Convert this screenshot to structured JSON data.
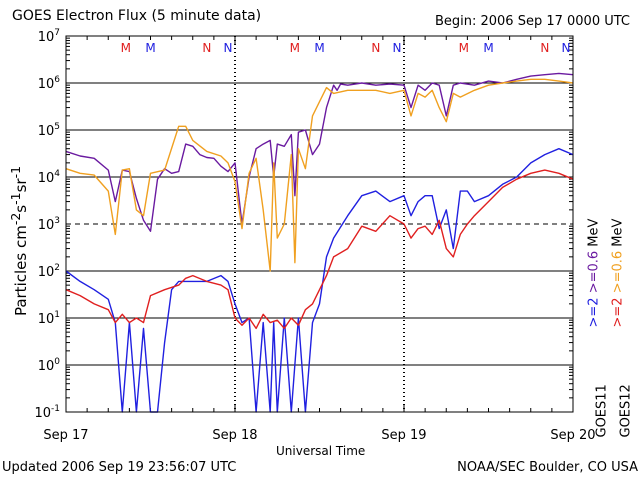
{
  "header": {
    "title": "GOES Electron Flux (5 minute data)",
    "begin": "Begin: 2006 Sep 17 0000 UTC"
  },
  "footer": {
    "updated": "Updated 2006 Sep 19 23:56:07 UTC",
    "credit": "NOAA/SEC Boulder, CO USA"
  },
  "colors": {
    "goes11_high": "#2020e0",
    "goes12_high": "#e02020",
    "goes11_low": "#6a1aa0",
    "goes12_low": "#f0a020"
  },
  "chart_data": {
    "type": "line",
    "title": "GOES Electron Flux (5 minute data)",
    "xlabel": "Universal Time",
    "ylabel": "Particles cm-2s-1sr-1",
    "y_scale": "log",
    "ylim": [
      0.1,
      10000000
    ],
    "xlim": [
      0,
      72
    ],
    "x_unit": "hours since 2006 Sep 17 0000 UTC",
    "x_ticks": [
      {
        "x": 0,
        "label": "Sep 17"
      },
      {
        "x": 24,
        "label": "Sep 18"
      },
      {
        "x": 48,
        "label": "Sep 19"
      },
      {
        "x": 72,
        "label": "Sep 20"
      }
    ],
    "y_ticks": [
      {
        "exp": "-1",
        "v": 0.1
      },
      {
        "exp": "0",
        "v": 1
      },
      {
        "exp": "1",
        "v": 10
      },
      {
        "exp": "2",
        "v": 100
      },
      {
        "exp": "3",
        "v": 1000
      },
      {
        "exp": "4",
        "v": 10000
      },
      {
        "exp": "5",
        "v": 100000
      },
      {
        "exp": "6",
        "v": 1000000
      },
      {
        "exp": "7",
        "v": 10000000
      }
    ],
    "threshold_dashed": 1000,
    "markers": [
      {
        "x": 8.5,
        "label": "M",
        "sat": "GOES12"
      },
      {
        "x": 12.0,
        "label": "M",
        "sat": "GOES11"
      },
      {
        "x": 20.0,
        "label": "N",
        "sat": "GOES12"
      },
      {
        "x": 23.0,
        "label": "N",
        "sat": "GOES11"
      },
      {
        "x": 32.5,
        "label": "M",
        "sat": "GOES12"
      },
      {
        "x": 36.0,
        "label": "M",
        "sat": "GOES11"
      },
      {
        "x": 44.0,
        "label": "N",
        "sat": "GOES12"
      },
      {
        "x": 47.0,
        "label": "N",
        "sat": "GOES11"
      },
      {
        "x": 56.5,
        "label": "M",
        "sat": "GOES12"
      },
      {
        "x": 60.0,
        "label": "M",
        "sat": "GOES11"
      },
      {
        "x": 68.0,
        "label": "N",
        "sat": "GOES12"
      },
      {
        "x": 71.0,
        "label": "N",
        "sat": "GOES11"
      }
    ],
    "legend": {
      "placement": "right",
      "satellites": [
        "GOES11",
        "GOES12"
      ],
      "goes11_high": ">=2",
      "goes11_low": ">=0.6",
      "goes12_high": ">=2",
      "goes12_low": ">=0.6",
      "unit": "MeV"
    },
    "series": [
      {
        "name": "GOES11 >=0.6 MeV",
        "color": "#6a1aa0",
        "x": [
          0,
          2,
          4,
          6,
          7,
          8,
          9,
          10,
          11,
          12,
          13,
          14,
          15,
          16,
          17,
          18,
          19,
          20,
          21,
          22,
          23,
          24,
          25,
          26,
          27,
          28,
          29,
          29.5,
          30,
          31,
          32,
          32.5,
          33,
          34,
          35,
          36,
          37,
          38,
          38.5,
          39,
          40,
          42,
          44,
          46,
          48,
          49,
          50,
          51,
          52,
          53,
          54,
          55,
          56,
          58,
          60,
          62,
          64,
          66,
          68,
          70,
          72
        ],
        "y": [
          35000,
          28000,
          25000,
          14000,
          3000,
          14000,
          13000,
          3500,
          1200,
          700,
          9000,
          15000,
          12000,
          13000,
          50000,
          45000,
          30000,
          26000,
          25000,
          17000,
          13000,
          20000,
          1000,
          10000,
          40000,
          50000,
          60000,
          10000,
          50000,
          45000,
          80000,
          4000,
          90000,
          100000,
          30000,
          50000,
          300000,
          900000,
          700000,
          950000,
          900000,
          1000000,
          900000,
          950000,
          900000,
          300000,
          900000,
          700000,
          1000000,
          900000,
          200000,
          900000,
          1000000,
          900000,
          1100000,
          1000000,
          1200000,
          1400000,
          1500000,
          1600000,
          1500000
        ]
      },
      {
        "name": "GOES12 >=0.6 MeV",
        "color": "#f0a020",
        "x": [
          0,
          2,
          4,
          6,
          7,
          8,
          9,
          10,
          11,
          12,
          14,
          16,
          17,
          18,
          20,
          22,
          23,
          24,
          25,
          26,
          27,
          28,
          29,
          29.5,
          30,
          31,
          32,
          32.5,
          33,
          34,
          35,
          36,
          37,
          38,
          40,
          42,
          44,
          46,
          48,
          49,
          50,
          51,
          52,
          53,
          54,
          55,
          56,
          58,
          60,
          62,
          64,
          66,
          68,
          70,
          72
        ],
        "y": [
          15000,
          12000,
          11000,
          5000,
          600,
          14000,
          15000,
          2000,
          1500,
          12000,
          14000,
          120000,
          120000,
          60000,
          35000,
          28000,
          20000,
          8000,
          800,
          12000,
          25000,
          2000,
          100,
          20000,
          500,
          1000,
          30000,
          150,
          40000,
          15000,
          200000,
          400000,
          800000,
          600000,
          700000,
          700000,
          700000,
          600000,
          700000,
          200000,
          600000,
          500000,
          700000,
          300000,
          150000,
          600000,
          500000,
          700000,
          900000,
          1000000,
          1100000,
          1200000,
          1200000,
          1100000,
          1000000
        ]
      },
      {
        "name": "GOES11 >=2 MeV",
        "color": "#2020e0",
        "x": [
          0,
          2,
          4,
          6,
          7,
          8,
          9,
          10,
          11,
          12,
          13,
          14,
          15,
          16,
          18,
          20,
          22,
          23,
          24,
          25,
          26,
          27,
          28,
          29,
          29.5,
          30,
          31,
          32,
          33,
          34,
          35,
          36,
          37,
          38,
          40,
          42,
          44,
          46,
          48,
          49,
          50,
          51,
          52,
          53,
          54,
          55,
          56,
          57,
          58,
          60,
          62,
          64,
          66,
          68,
          70,
          72
        ],
        "y": [
          100,
          60,
          40,
          25,
          8,
          0.1,
          8,
          0.1,
          6,
          0.1,
          0.1,
          3,
          40,
          60,
          60,
          60,
          80,
          60,
          20,
          8,
          10,
          0.1,
          8,
          0.1,
          8,
          0.1,
          10,
          0.1,
          10,
          0.1,
          8,
          20,
          200,
          500,
          1500,
          4000,
          5000,
          3000,
          4000,
          1500,
          3000,
          4000,
          4000,
          800,
          2000,
          300,
          5000,
          5000,
          3000,
          4000,
          7000,
          10000,
          20000,
          30000,
          40000,
          30000
        ]
      },
      {
        "name": "GOES12 >=2 MeV",
        "color": "#e02020",
        "x": [
          0,
          2,
          4,
          6,
          7,
          8,
          9,
          10,
          11,
          12,
          14,
          16,
          17,
          18,
          20,
          22,
          23,
          24,
          25,
          26,
          27,
          28,
          29,
          30,
          31,
          32,
          33,
          34,
          35,
          36,
          37,
          38,
          40,
          42,
          44,
          46,
          48,
          49,
          50,
          51,
          52,
          53,
          54,
          55,
          56,
          57,
          58,
          60,
          62,
          64,
          66,
          68,
          70,
          72
        ],
        "y": [
          40,
          30,
          20,
          15,
          8,
          12,
          8,
          10,
          8,
          30,
          40,
          50,
          70,
          80,
          60,
          50,
          40,
          10,
          7,
          10,
          6,
          12,
          8,
          9,
          6,
          10,
          7,
          15,
          20,
          40,
          80,
          200,
          300,
          900,
          700,
          1500,
          1000,
          500,
          800,
          900,
          600,
          1200,
          300,
          200,
          600,
          1000,
          1500,
          3000,
          6000,
          9000,
          12000,
          14000,
          12000,
          9000
        ]
      }
    ]
  }
}
